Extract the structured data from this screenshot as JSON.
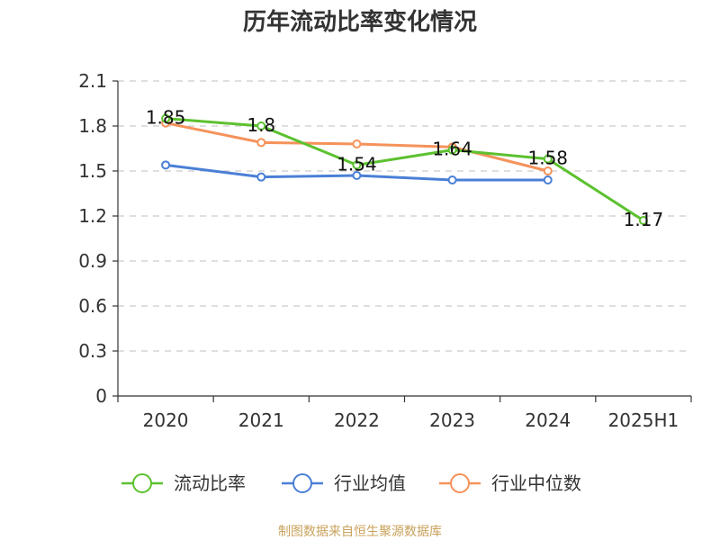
{
  "chart_data": {
    "type": "line",
    "title": "历年流动比率变化情况",
    "categories": [
      "2020",
      "2021",
      "2022",
      "2023",
      "2024",
      "2025H1"
    ],
    "y_ticks": [
      "0",
      "0.3",
      "0.6",
      "0.9",
      "1.2",
      "1.5",
      "1.8",
      "2.1"
    ],
    "ylim": [
      0,
      2.1
    ],
    "grid": true,
    "legend_position": "bottom",
    "series": [
      {
        "name": "流动比率",
        "color": "#5cc12f",
        "values": [
          1.85,
          1.8,
          1.54,
          1.64,
          1.58,
          1.17
        ],
        "labels": [
          "1.85",
          "1.8",
          "1.54",
          "1.64",
          "1.58",
          "1.17"
        ]
      },
      {
        "name": "行业均值",
        "color": "#4a7fd6",
        "values": [
          1.54,
          1.46,
          1.47,
          1.44,
          1.44,
          null
        ]
      },
      {
        "name": "行业中位数",
        "color": "#f5925a",
        "values": [
          1.82,
          1.69,
          1.68,
          1.66,
          1.5,
          null
        ]
      }
    ],
    "source": "制图数据来自恒生聚源数据库"
  }
}
